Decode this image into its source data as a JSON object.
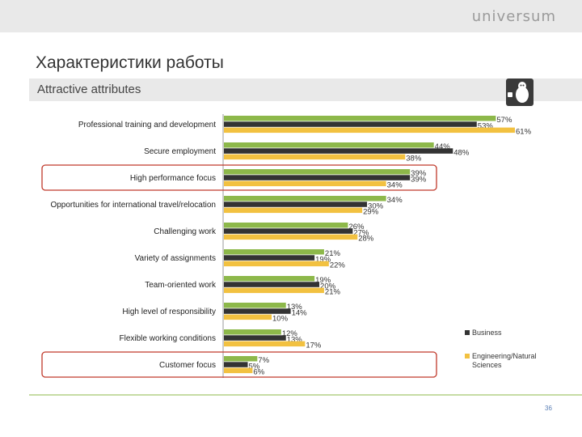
{
  "header": {
    "logo_text": "universum"
  },
  "page": {
    "title": "Характеристики работы",
    "subtitle": "Attractive attributes",
    "page_number": "36"
  },
  "colors": {
    "series1": "#8db84a",
    "series2": "#333333",
    "series3": "#f2c140",
    "highlight": "#c0392b",
    "axis": "#999999"
  },
  "chart_data": {
    "type": "bar",
    "orientation": "horizontal",
    "categories": [
      "Professional training and development",
      "Secure employment",
      "High performance focus",
      "Opportunities for international travel/relocation",
      "Challenging work",
      "Variety of assignments",
      "Team-oriented work",
      "High level of responsibility",
      "Flexible working conditions",
      "Customer focus"
    ],
    "series": [
      {
        "values": [
          57,
          44,
          39,
          34,
          26,
          21,
          19,
          13,
          12,
          7
        ]
      },
      {
        "name": "Business",
        "values": [
          53,
          48,
          39,
          30,
          27,
          19,
          20,
          14,
          13,
          5
        ]
      },
      {
        "name": "Engineering/Natural Sciences",
        "values": [
          61,
          38,
          34,
          29,
          28,
          22,
          21,
          10,
          17,
          6
        ]
      }
    ],
    "value_suffix": "%",
    "highlighted_categories": [
      "High performance focus",
      "Customer focus"
    ],
    "legend_position": "bottom-right",
    "xlim": [
      0,
      61
    ]
  }
}
